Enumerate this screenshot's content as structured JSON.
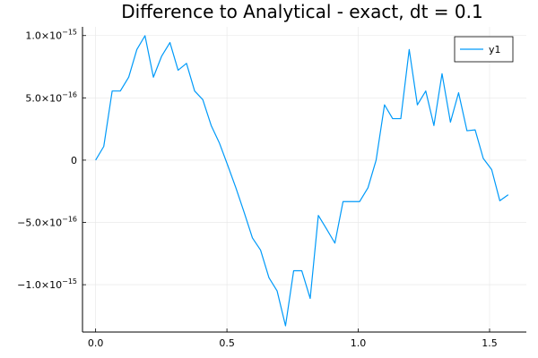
{
  "chart_data": {
    "type": "line",
    "title": "Difference to Analytical - exact, dt = 0.1",
    "xlabel": "",
    "ylabel": "",
    "xlim": [
      -0.05,
      1.64
    ],
    "ylim": [
      -1.38e-15,
      1.07e-15
    ],
    "grid": true,
    "legend_position": "top-right",
    "x_ticks": [
      {
        "value": 0.0,
        "label": "0.0"
      },
      {
        "value": 0.5,
        "label": "0.5"
      },
      {
        "value": 1.0,
        "label": "1.0"
      },
      {
        "value": 1.5,
        "label": "1.5"
      }
    ],
    "y_ticks": [
      {
        "value": 1e-15,
        "base": "1.0×10",
        "exp": "−15"
      },
      {
        "value": 5e-16,
        "base": "5.0×10",
        "exp": "−16"
      },
      {
        "value": 0,
        "base": "0",
        "exp": ""
      },
      {
        "value": -5e-16,
        "base": "−5.0×10",
        "exp": "−16"
      },
      {
        "value": -1e-15,
        "base": "−1.0×10",
        "exp": "−15"
      }
    ],
    "series": [
      {
        "name": "y1",
        "color": "#009af9",
        "x": [
          0.0,
          0.031,
          0.063,
          0.094,
          0.126,
          0.157,
          0.188,
          0.22,
          0.251,
          0.283,
          0.314,
          0.346,
          0.377,
          0.408,
          0.44,
          0.471,
          0.503,
          0.534,
          0.565,
          0.597,
          0.628,
          0.66,
          0.691,
          0.723,
          0.754,
          0.785,
          0.817,
          0.848,
          0.88,
          0.911,
          0.942,
          0.974,
          1.005,
          1.037,
          1.068,
          1.1,
          1.131,
          1.162,
          1.194,
          1.225,
          1.257,
          1.288,
          1.319,
          1.351,
          1.382,
          1.414,
          1.445,
          1.476,
          1.508,
          1.539,
          1.571
        ],
        "values": [
          0.0,
          1.1e-16,
          5.55e-16,
          5.55e-16,
          6.66e-16,
          8.88e-16,
          9.99e-16,
          6.66e-16,
          8.33e-16,
          9.44e-16,
          7.22e-16,
          7.77e-16,
          5.55e-16,
          4.86e-16,
          2.78e-16,
          1.39e-16,
          -4.2e-17,
          -2.22e-16,
          -4.16e-16,
          -6.24e-16,
          -7.22e-16,
          -9.44e-16,
          -1.05e-15,
          -1.33e-15,
          -8.88e-16,
          -8.88e-16,
          -1.11e-15,
          -4.44e-16,
          -5.55e-16,
          -6.66e-16,
          -3.33e-16,
          -3.33e-16,
          -3.33e-16,
          -2.22e-16,
          0.0,
          4.44e-16,
          3.33e-16,
          3.33e-16,
          8.88e-16,
          4.44e-16,
          5.55e-16,
          2.78e-16,
          6.94e-16,
          3.05e-16,
          5.41e-16,
          2.36e-16,
          2.43e-16,
          1.4e-17,
          -7.6e-17,
          -3.26e-16,
          -2.78e-16
        ]
      }
    ]
  }
}
